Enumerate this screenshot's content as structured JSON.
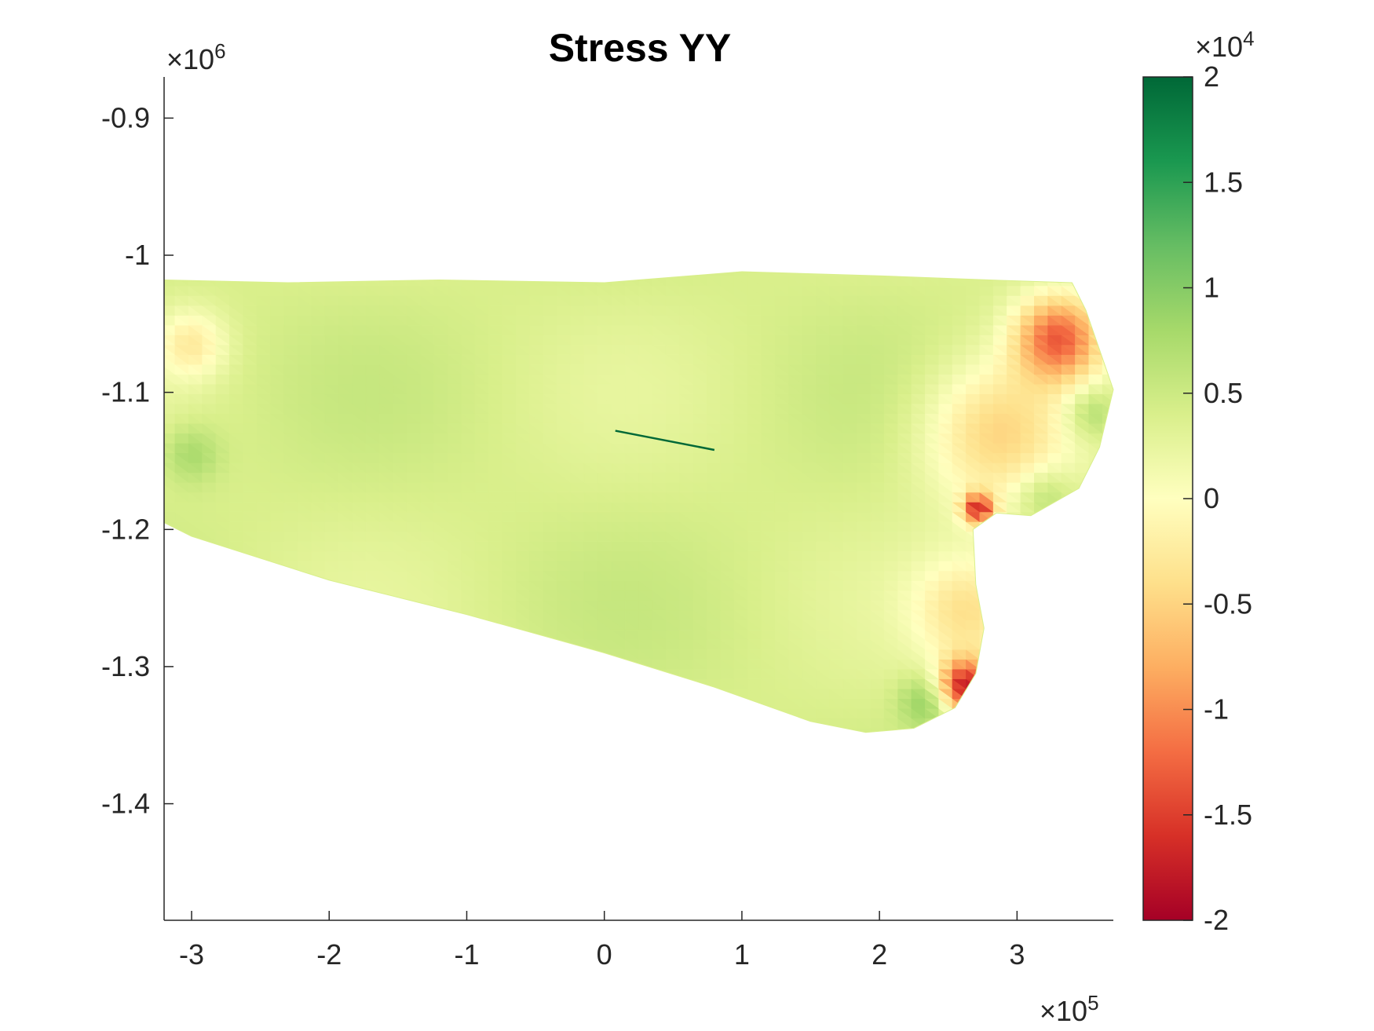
{
  "chart_data": {
    "type": "heatmap",
    "title": "Stress YY",
    "x_axis": {
      "range": [
        -320000,
        370000
      ],
      "ticks": [
        -300000,
        -200000,
        -100000,
        0,
        100000,
        200000,
        300000
      ],
      "tick_labels": [
        "-3",
        "-2",
        "-1",
        "0",
        "1",
        "2",
        "3"
      ],
      "multiplier_base": "×10",
      "multiplier_exp": "5"
    },
    "y_axis": {
      "range": [
        -1485000,
        -870000
      ],
      "ticks": [
        -900000,
        -1000000,
        -1100000,
        -1200000,
        -1300000,
        -1400000
      ],
      "tick_labels": [
        "-0.9",
        "-1",
        "-1.1",
        "-1.2",
        "-1.3",
        "-1.4"
      ],
      "multiplier_base": "×10",
      "multiplier_exp": "6"
    },
    "colorbar": {
      "range": [
        -20000,
        20000
      ],
      "ticks": [
        20000,
        15000,
        10000,
        5000,
        0,
        -5000,
        -10000,
        -15000,
        -20000
      ],
      "tick_labels": [
        "2",
        "1.5",
        "1",
        "0.5",
        "0",
        "-0.5",
        "-1",
        "-1.5",
        "-2"
      ],
      "multiplier_base": "×10",
      "multiplier_exp": "4",
      "colormap": [
        "#a50026",
        "#d73027",
        "#f46d43",
        "#fdae61",
        "#fee08b",
        "#ffffbf",
        "#d9ef8b",
        "#a6d96a",
        "#66bd63",
        "#1a9850",
        "#006837"
      ]
    },
    "domain_outline": [
      [
        -320000,
        -1018000
      ],
      [
        -230000,
        -1020000
      ],
      [
        -120000,
        -1018000
      ],
      [
        0,
        -1020000
      ],
      [
        100000,
        -1012000
      ],
      [
        200000,
        -1015000
      ],
      [
        280000,
        -1018000
      ],
      [
        340000,
        -1020000
      ],
      [
        350000,
        -1040000
      ],
      [
        370000,
        -1098000
      ],
      [
        360000,
        -1140000
      ],
      [
        345000,
        -1170000
      ],
      [
        310000,
        -1190000
      ],
      [
        285000,
        -1188000
      ],
      [
        268000,
        -1200000
      ],
      [
        270000,
        -1240000
      ],
      [
        276000,
        -1272000
      ],
      [
        270000,
        -1305000
      ],
      [
        255000,
        -1330000
      ],
      [
        225000,
        -1345000
      ],
      [
        190000,
        -1348000
      ],
      [
        150000,
        -1340000
      ],
      [
        80000,
        -1315000
      ],
      [
        0,
        -1290000
      ],
      [
        -100000,
        -1262000
      ],
      [
        -200000,
        -1237000
      ],
      [
        -300000,
        -1205000
      ],
      [
        -320000,
        -1195000
      ]
    ],
    "field_value_baseline": 4000,
    "stress_features": [
      {
        "x": 330000,
        "y": -1060000,
        "value": -12000,
        "spread": 22000
      },
      {
        "x": 263000,
        "y": -1315000,
        "value": -17000,
        "spread": 14000
      },
      {
        "x": 272000,
        "y": -1185000,
        "value": -14000,
        "spread": 8000
      },
      {
        "x": 285000,
        "y": -1130000,
        "value": -5000,
        "spread": 38000
      },
      {
        "x": 265000,
        "y": -1260000,
        "value": -3000,
        "spread": 28000
      },
      {
        "x": 355000,
        "y": -1115000,
        "value": 9000,
        "spread": 14000
      },
      {
        "x": 320000,
        "y": -1175000,
        "value": 8000,
        "spread": 14000
      },
      {
        "x": 235000,
        "y": -1325000,
        "value": 10000,
        "spread": 14000
      },
      {
        "x": -300000,
        "y": -1065000,
        "value": -2000,
        "spread": 18000
      },
      {
        "x": -300000,
        "y": -1145000,
        "value": 8000,
        "spread": 15000
      }
    ],
    "crack_line": [
      [
        8000,
        -1128000
      ],
      [
        80000,
        -1142000
      ]
    ],
    "crack_value": 20000
  }
}
